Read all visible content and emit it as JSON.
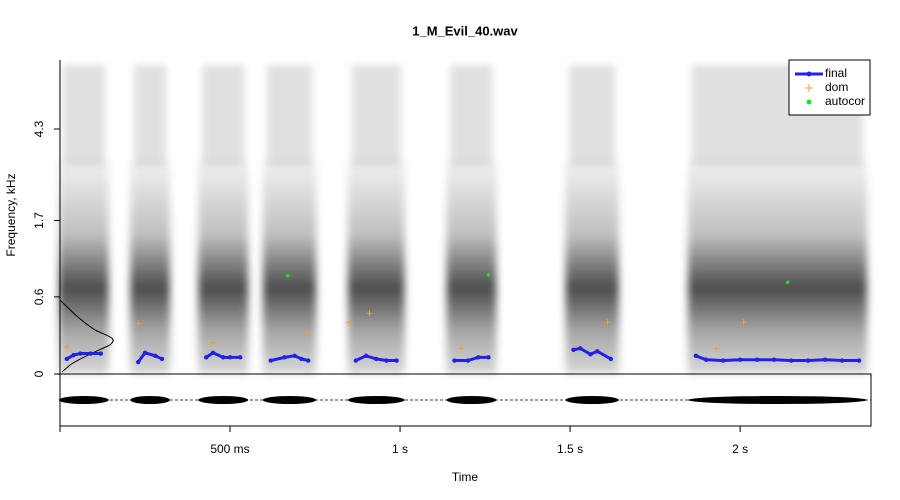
{
  "chart_data": {
    "type": "spectrogram",
    "title": "1_M_Evil_40.wav",
    "x_label": "Time",
    "y_label": "Frequency, kHz",
    "xlim": [
      0,
      2.385
    ],
    "xticks": [
      {
        "value": 0.5,
        "label": "500 ms"
      },
      {
        "value": 1,
        "label": "1 s"
      },
      {
        "value": 1.5,
        "label": "1.5 s"
      },
      {
        "value": 2,
        "label": "2 s"
      }
    ],
    "ylim": [
      0,
      8
    ],
    "yscale": "mel",
    "yticks": [
      0,
      0.6,
      1.7,
      4.3
    ],
    "legend": "top-right",
    "series": [
      {
        "name": "final",
        "color": "#2222e6",
        "marker": "line",
        "x": [
          0.02,
          0.04,
          0.06,
          0.09,
          0.12,
          0.18,
          0.23,
          0.25,
          0.28,
          0.3,
          0.37,
          0.43,
          0.45,
          0.48,
          0.5,
          0.53,
          0.58,
          0.62,
          0.66,
          0.69,
          0.71,
          0.73,
          0.8,
          0.87,
          0.9,
          0.93,
          0.96,
          0.99,
          1.08,
          1.16,
          1.2,
          1.23,
          1.26,
          1.4,
          1.51,
          1.53,
          1.56,
          1.58,
          1.62,
          1.75,
          1.87,
          1.9,
          1.95,
          2.0,
          2.05,
          2.1,
          2.15,
          2.2,
          2.25,
          2.3,
          2.35
        ],
        "values": [
          0.09,
          0.115,
          0.125,
          0.125,
          0.125,
          null,
          0.07,
          0.13,
          0.11,
          0.09,
          null,
          0.1,
          0.13,
          0.1,
          0.1,
          0.1,
          null,
          0.08,
          0.1,
          0.11,
          0.09,
          0.08,
          null,
          0.08,
          0.11,
          0.09,
          0.08,
          0.08,
          null,
          0.08,
          0.08,
          0.1,
          0.1,
          null,
          0.15,
          0.16,
          0.12,
          0.14,
          0.09,
          null,
          0.11,
          0.085,
          0.08,
          0.085,
          0.085,
          0.085,
          0.08,
          0.08,
          0.085,
          0.08,
          0.08
        ]
      },
      {
        "name": "dom",
        "color": "#f0a030",
        "marker": "plus",
        "x": [
          0.02,
          0.23,
          0.45,
          0.73,
          0.85,
          0.91,
          1.18,
          1.61,
          1.93,
          2.01
        ],
        "values": [
          0.17,
          0.35,
          0.2,
          0.27,
          0.36,
          0.44,
          0.16,
          0.36,
          0.16,
          0.36
        ]
      },
      {
        "name": "autocor",
        "color": "#22dd22",
        "marker": "dot",
        "x": [
          0.67,
          1.26,
          2.14
        ],
        "values": [
          0.84,
          0.85,
          0.76
        ]
      }
    ]
  }
}
